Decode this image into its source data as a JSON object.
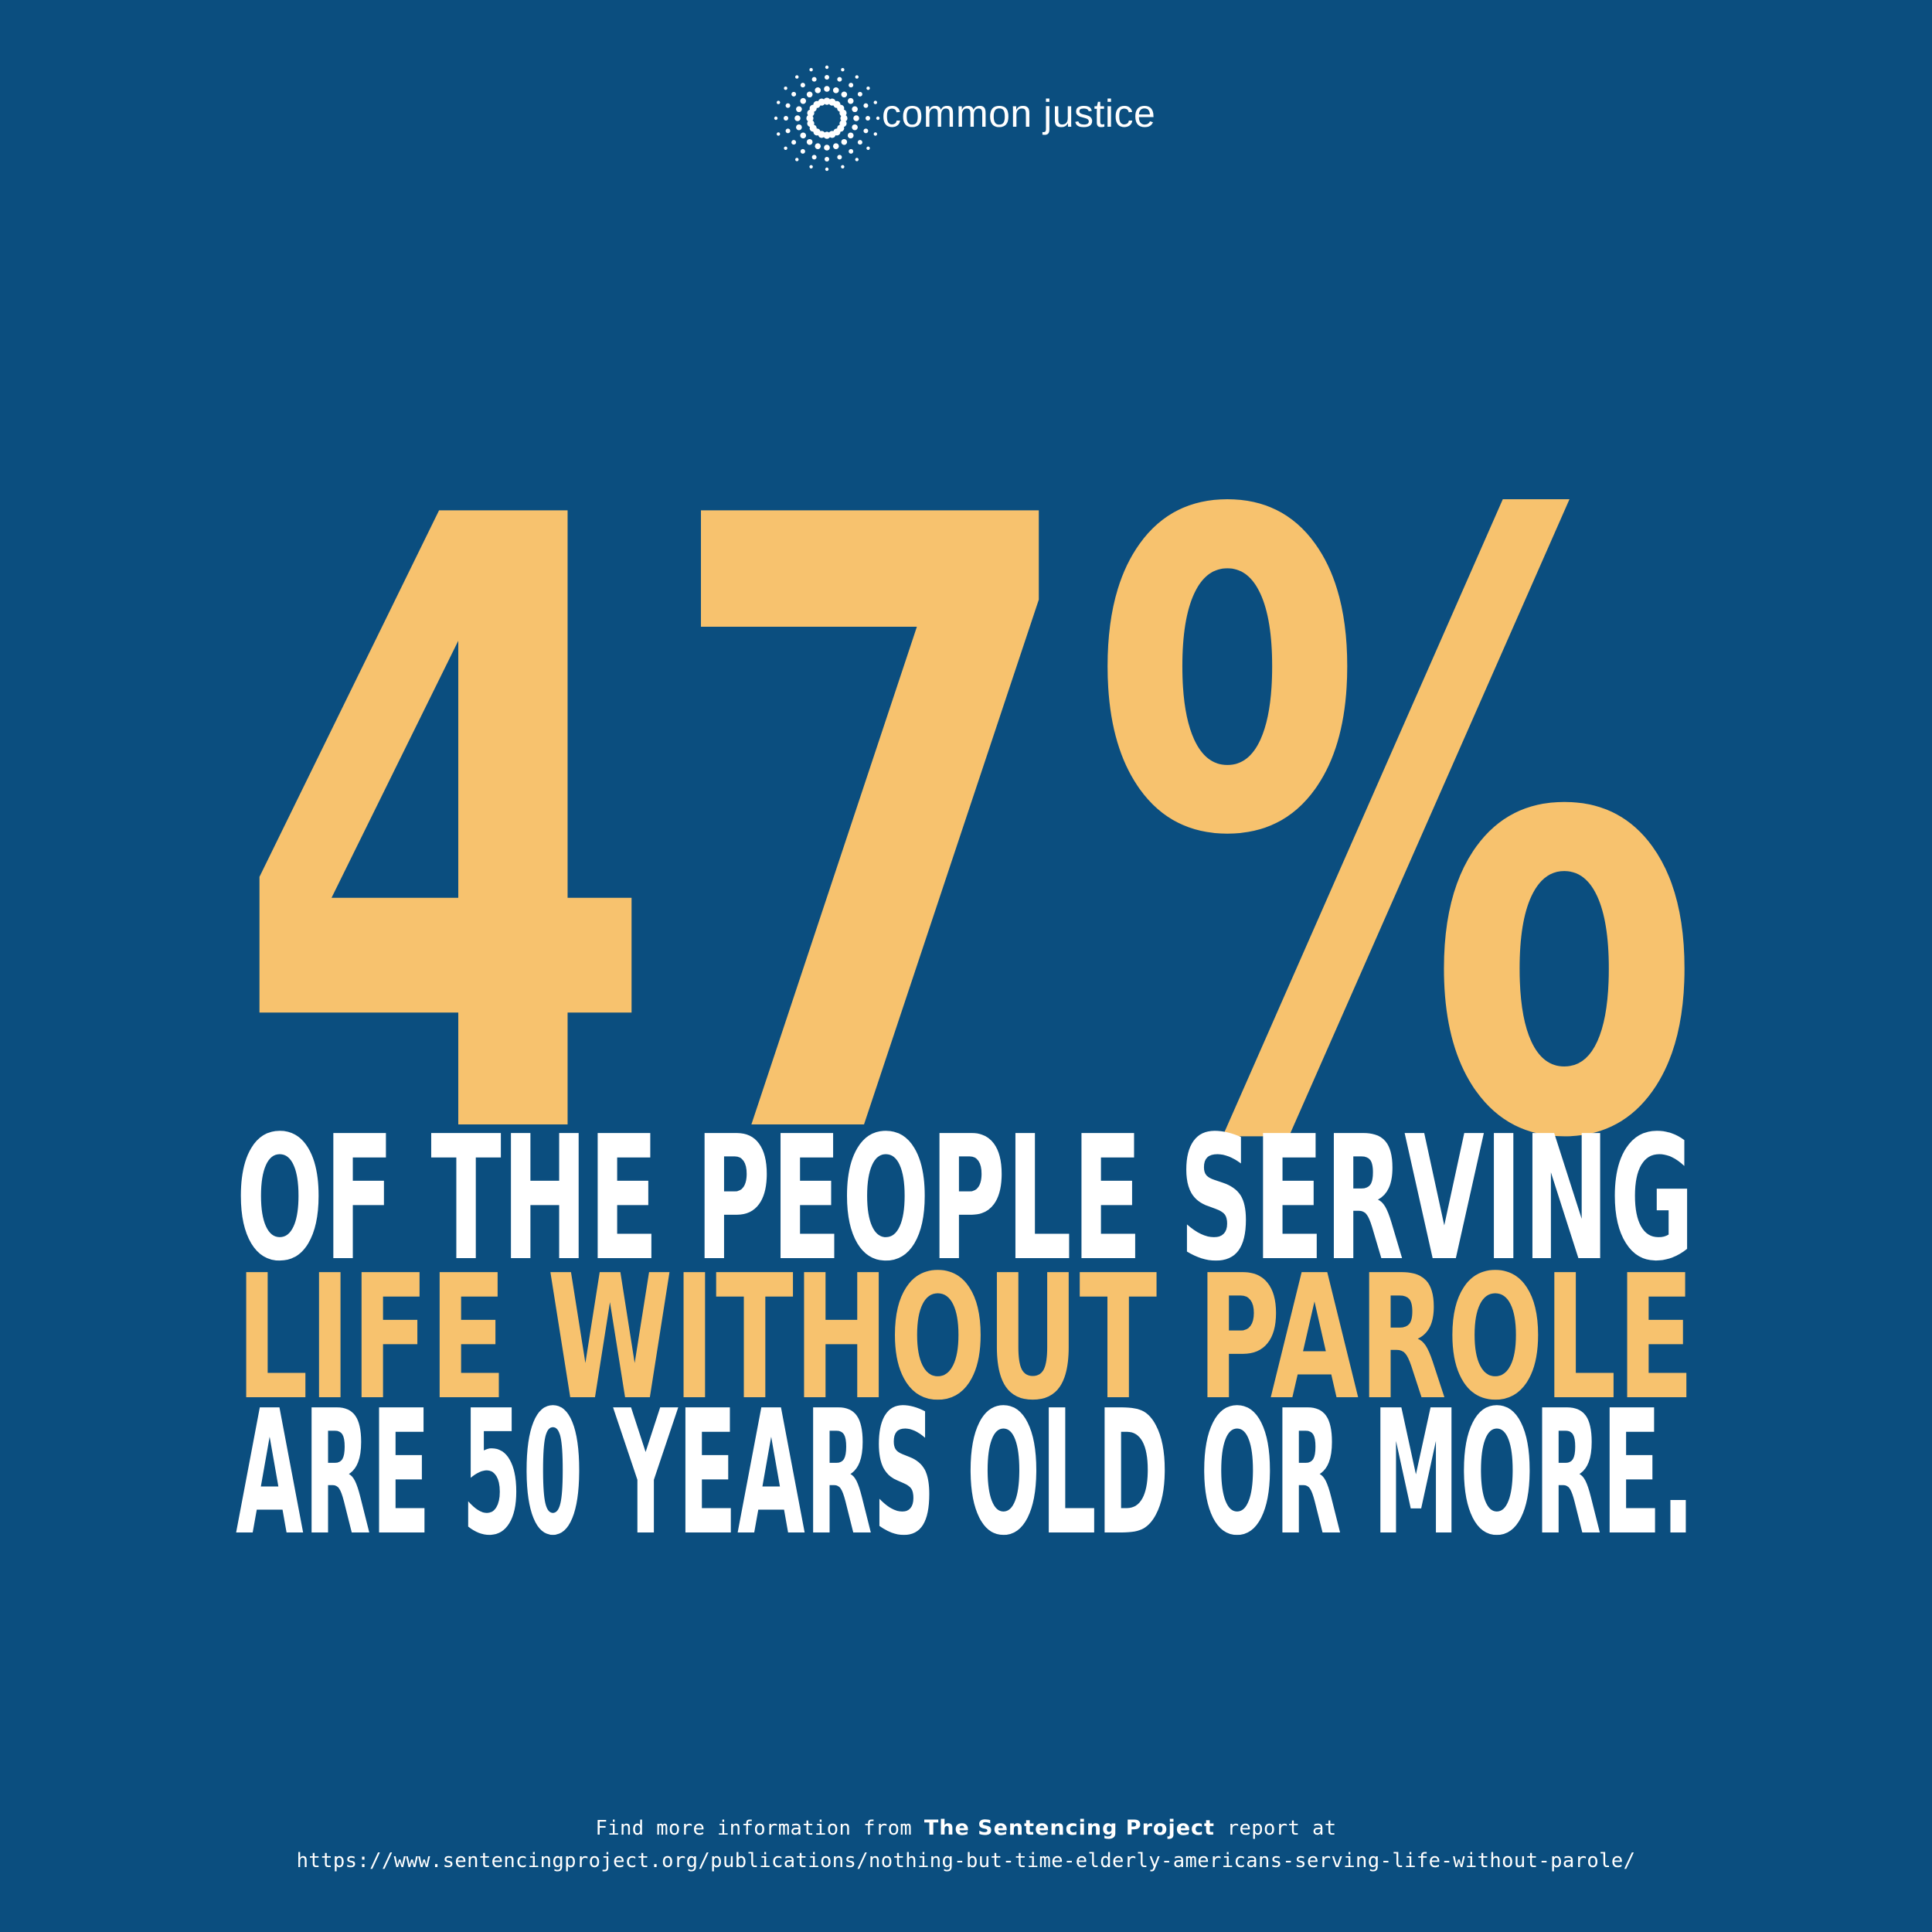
{
  "brand": {
    "name": "common justice",
    "logo_icon": "starburst-dots-icon"
  },
  "stat": {
    "value": "47%"
  },
  "headline": {
    "line1": "OF THE PEOPLE SERVING",
    "line2": "LIFE WITHOUT PAROLE",
    "line3": "ARE 50 YEARS OLD OR MORE."
  },
  "footer": {
    "prefix": "Find more information from ",
    "source": "The Sentencing Project",
    "suffix": " report at",
    "url": "https://www.sentencingproject.org/publications/nothing-but-time-elderly-americans-serving-life-without-parole/"
  },
  "colors": {
    "background": "#0b4e7f",
    "accent": "#f7c26e",
    "text": "#ffffff"
  }
}
